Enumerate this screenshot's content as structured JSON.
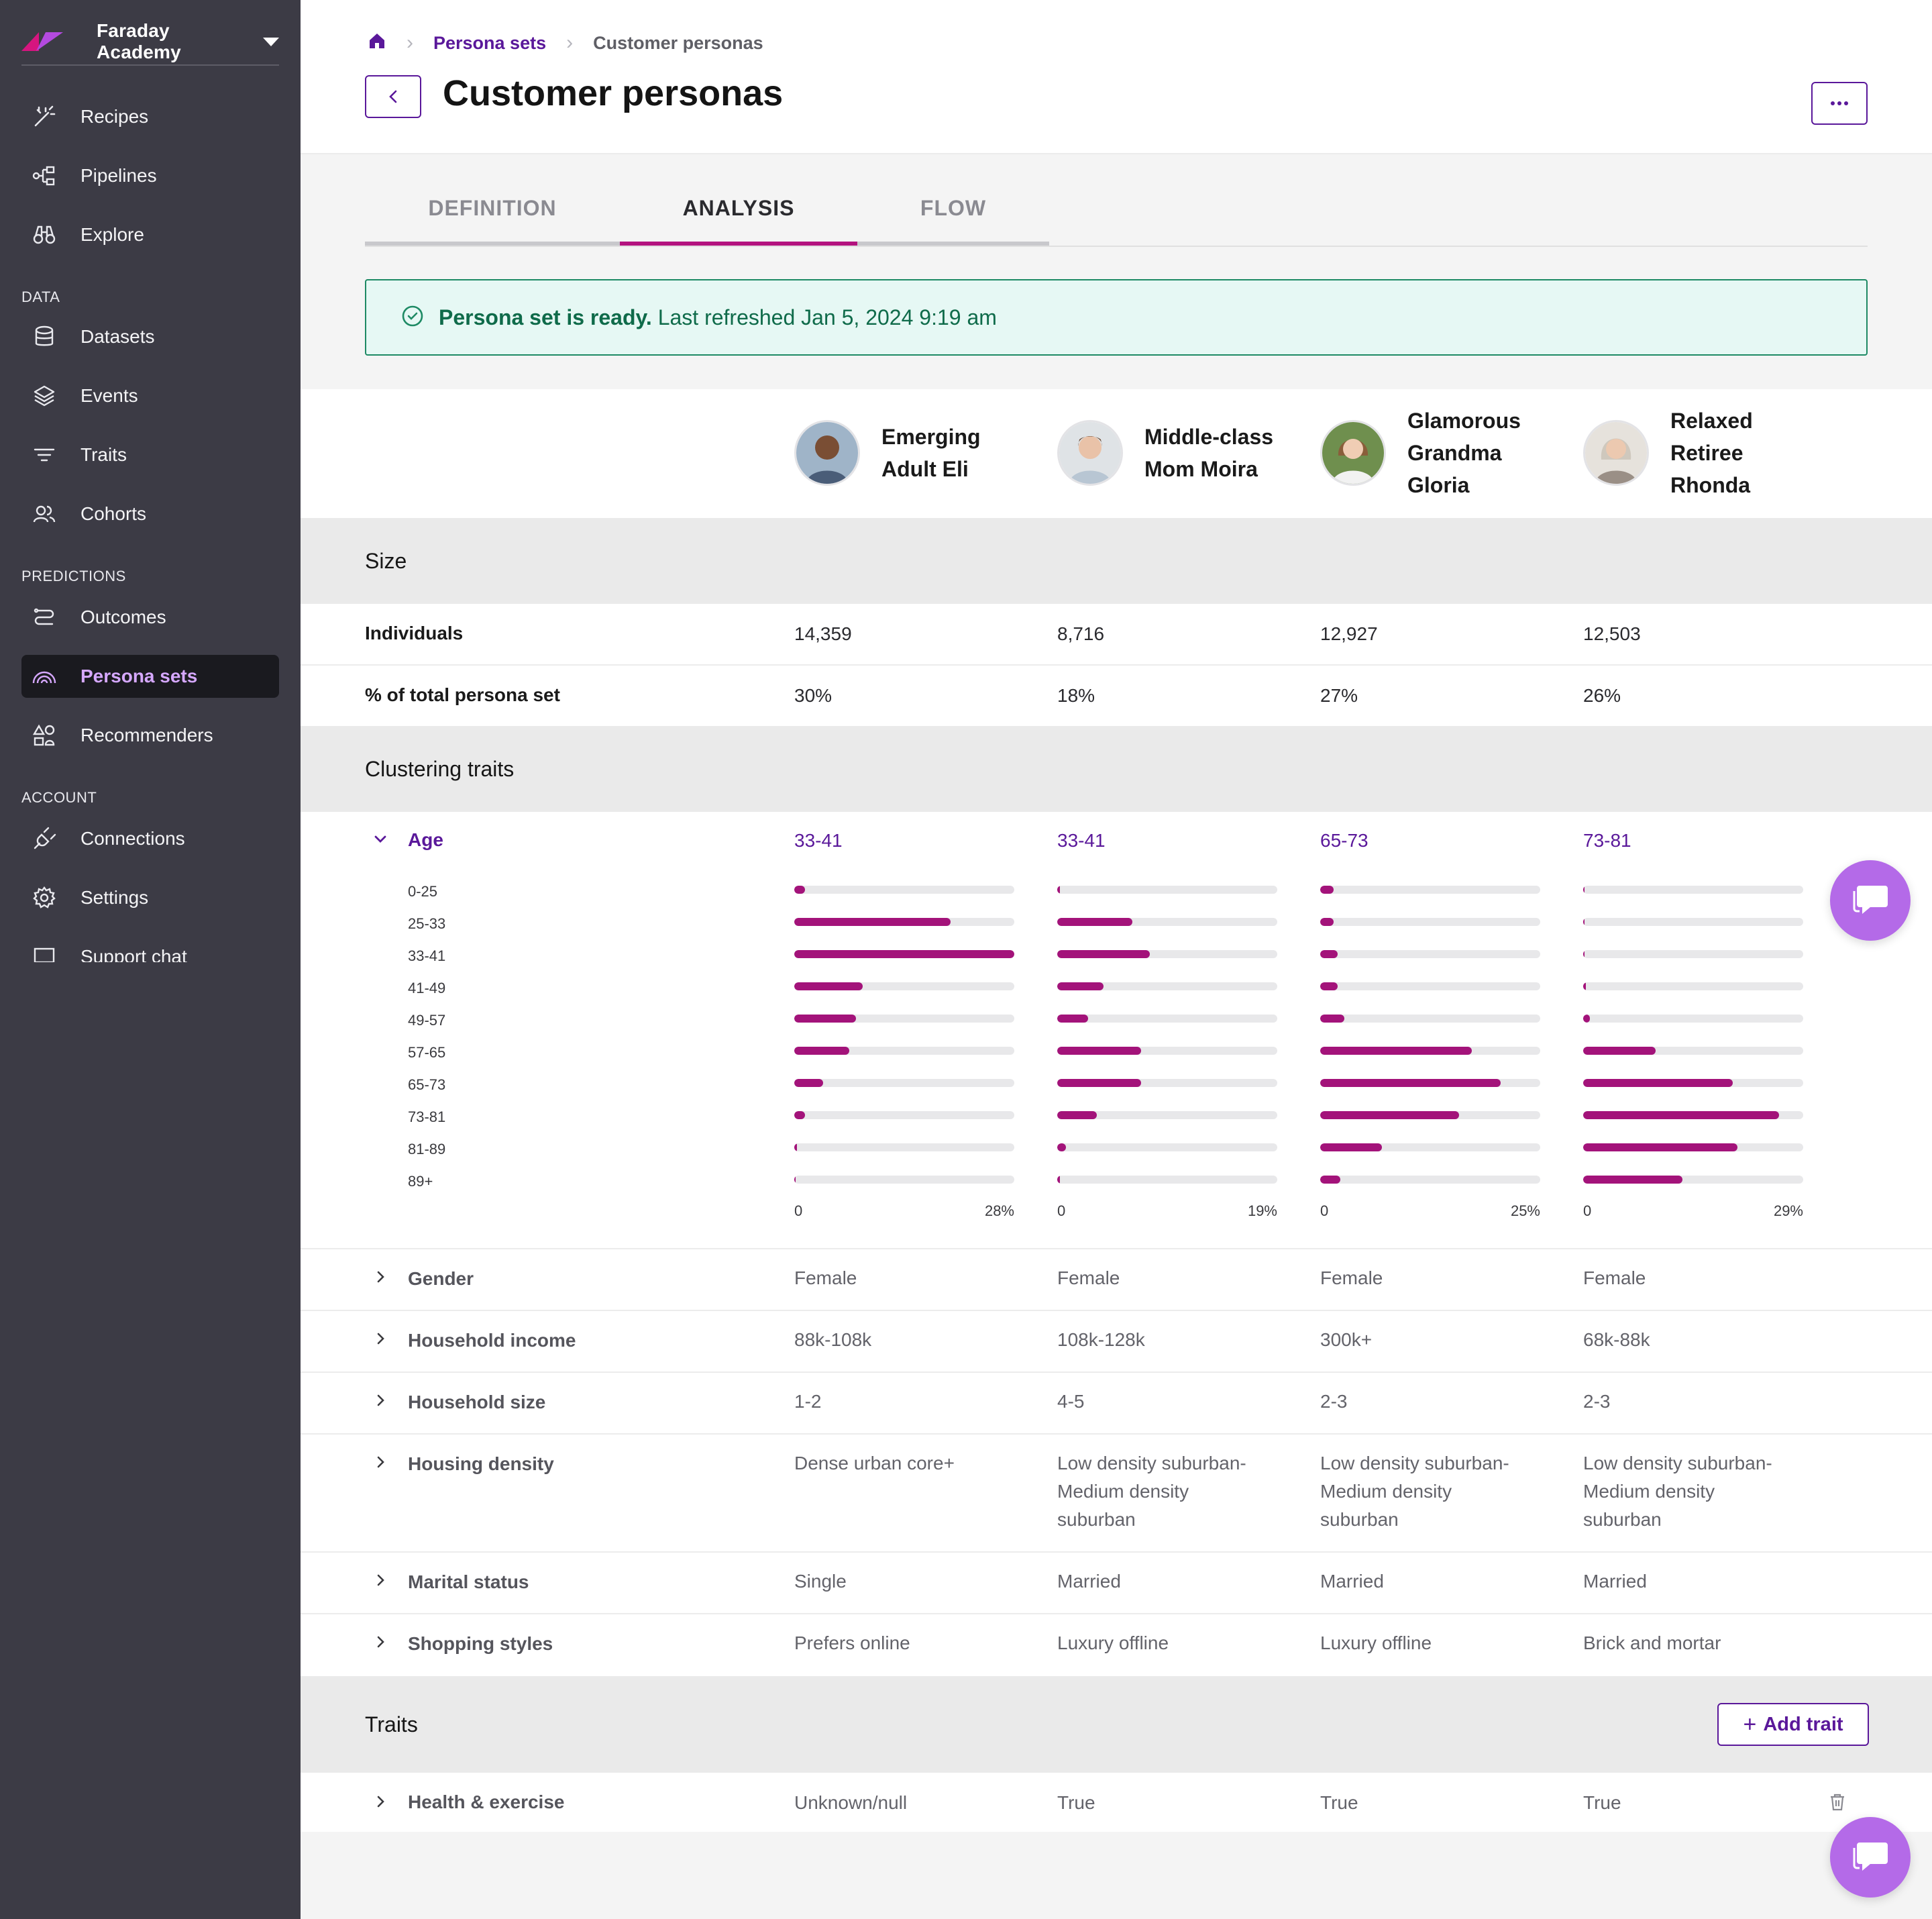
{
  "sidebar": {
    "brand": "Faraday Academy",
    "items_top": [
      {
        "label": "Recipes",
        "icon": "magic-wand-icon"
      },
      {
        "label": "Pipelines",
        "icon": "pipeline-icon"
      },
      {
        "label": "Explore",
        "icon": "binoculars-icon"
      }
    ],
    "section_data": "DATA",
    "items_data": [
      {
        "label": "Datasets",
        "icon": "database-icon"
      },
      {
        "label": "Events",
        "icon": "layers-icon"
      },
      {
        "label": "Traits",
        "icon": "filter-icon"
      },
      {
        "label": "Cohorts",
        "icon": "users-icon"
      }
    ],
    "section_predictions": "PREDICTIONS",
    "items_predictions": [
      {
        "label": "Outcomes",
        "icon": "route-icon"
      },
      {
        "label": "Persona sets",
        "icon": "rainbow-icon",
        "active": true
      },
      {
        "label": "Recommenders",
        "icon": "shapes-icon"
      }
    ],
    "section_account": "ACCOUNT",
    "items_account": [
      {
        "label": "Connections",
        "icon": "plug-icon"
      },
      {
        "label": "Settings",
        "icon": "gear-icon"
      },
      {
        "label": "Support chat",
        "icon": "chat-icon"
      }
    ]
  },
  "breadcrumb": {
    "parent": "Persona sets",
    "current": "Customer personas"
  },
  "page_title": "Customer personas",
  "tabs": [
    "DEFINITION",
    "ANALYSIS",
    "FLOW"
  ],
  "active_tab": "ANALYSIS",
  "banner": {
    "bold": "Persona set is ready.",
    "rest": " Last refreshed Jan 5, 2024 9:19 am"
  },
  "personas": [
    {
      "name": "Emerging\nAdult Eli"
    },
    {
      "name": "Middle-class\nMom Moira"
    },
    {
      "name": "Glamorous\nGrandma\nGloria"
    },
    {
      "name": "Relaxed\nRetiree\nRhonda"
    }
  ],
  "size": {
    "title": "Size",
    "individuals_label": "Individuals",
    "individuals": [
      "14,359",
      "8,716",
      "12,927",
      "12,503"
    ],
    "pct_label": "% of total persona set",
    "pct": [
      "30%",
      "18%",
      "27%",
      "26%"
    ]
  },
  "clustering": {
    "title": "Clustering traits",
    "age": {
      "label": "Age",
      "values": [
        "33-41",
        "33-41",
        "65-73",
        "73-81"
      ],
      "buckets": [
        "0-25",
        "25-33",
        "33-41",
        "41-49",
        "49-57",
        "57-65",
        "65-73",
        "73-81",
        "81-89",
        "89+"
      ],
      "axis_min": "0",
      "axis_max": [
        "28%",
        "19%",
        "25%",
        "29%"
      ],
      "distribution": [
        [
          0.05,
          0.71,
          1.0,
          0.31,
          0.28,
          0.25,
          0.13,
          0.05,
          0.01,
          0.0
        ],
        [
          0.01,
          0.34,
          0.42,
          0.21,
          0.14,
          0.38,
          0.38,
          0.18,
          0.04,
          0.01
        ],
        [
          0.06,
          0.06,
          0.08,
          0.08,
          0.11,
          0.69,
          0.82,
          0.63,
          0.28,
          0.09
        ],
        [
          0.0,
          0.0,
          0.0,
          0.01,
          0.03,
          0.33,
          0.68,
          0.89,
          0.7,
          0.45
        ]
      ]
    },
    "traits": [
      {
        "label": "Gender",
        "values": [
          "Female",
          "Female",
          "Female",
          "Female"
        ]
      },
      {
        "label": "Household income",
        "values": [
          "88k-108k",
          "108k-128k",
          "300k+",
          "68k-88k"
        ]
      },
      {
        "label": "Household size",
        "values": [
          "1-2",
          "4-5",
          "2-3",
          "2-3"
        ]
      },
      {
        "label": "Housing density",
        "values": [
          "Dense urban core+",
          "Low density suburban-\nMedium density\nsuburban",
          "Low density suburban-\nMedium density\nsuburban",
          "Low density suburban-\nMedium density\nsuburban"
        ]
      },
      {
        "label": "Marital status",
        "values": [
          "Single",
          "Married",
          "Married",
          "Married"
        ]
      },
      {
        "label": "Shopping styles",
        "values": [
          "Prefers online",
          "Luxury offline",
          "Luxury offline",
          "Brick and mortar"
        ]
      }
    ]
  },
  "traits_section": {
    "title": "Traits",
    "add_label": "Add trait",
    "rows": [
      {
        "label": "Health & exercise",
        "values": [
          "Unknown/null",
          "True",
          "True",
          "True"
        ]
      }
    ]
  },
  "colors": {
    "accent": "#5a189a",
    "bar": "#a3137a",
    "tab_active": "#b3137f",
    "success": "#1e8a64",
    "sidebar": "#3c3b45",
    "chat": "#b46ae8"
  }
}
